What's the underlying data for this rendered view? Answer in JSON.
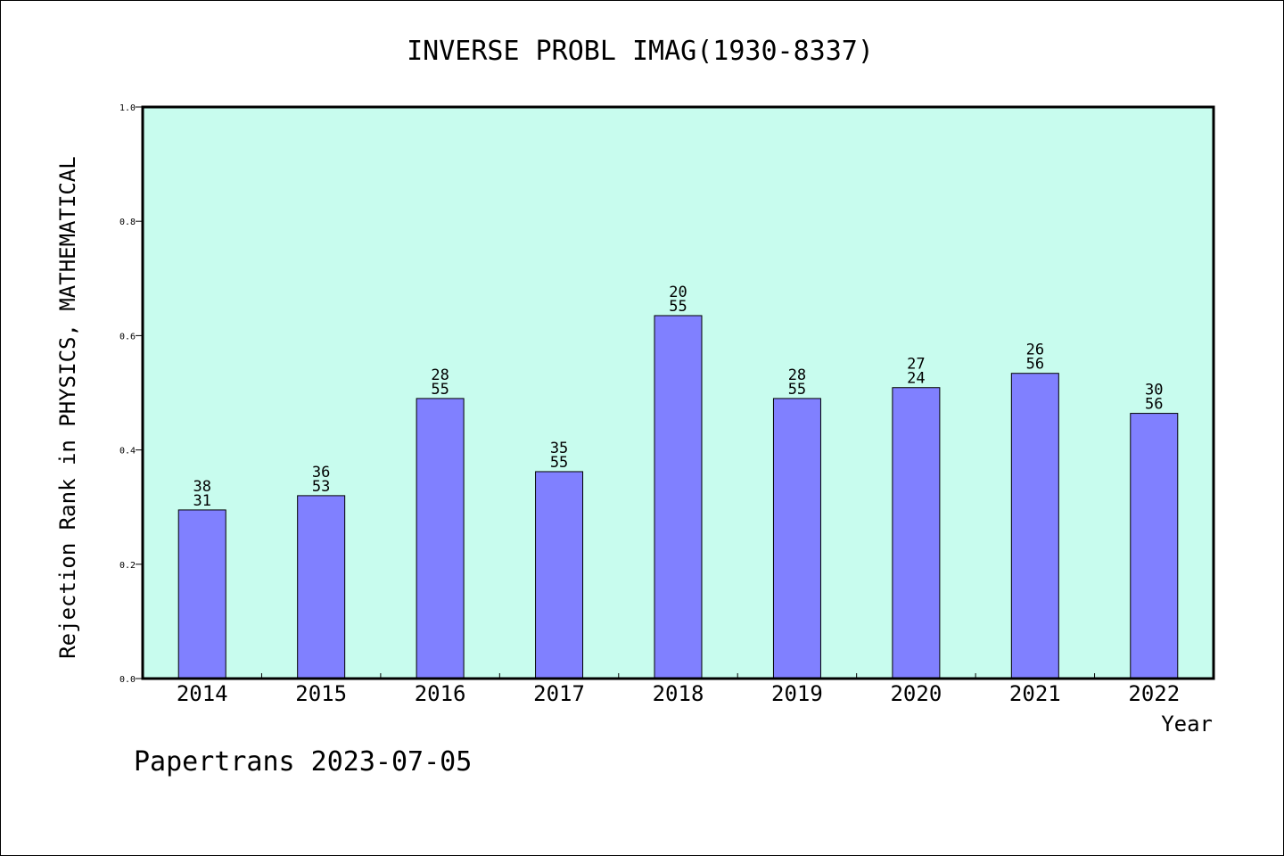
{
  "chart_data": {
    "type": "bar",
    "title": "INVERSE PROBL IMAG(1930-8337)",
    "xlabel": "Year",
    "ylabel": "Rejection Rank in PHYSICS, MATHEMATICAL",
    "categories": [
      "2014",
      "2015",
      "2016",
      "2017",
      "2018",
      "2019",
      "2020",
      "2021",
      "2022"
    ],
    "values": [
      0.295,
      0.32,
      0.49,
      0.362,
      0.635,
      0.49,
      0.509,
      0.534,
      0.464
    ],
    "bar_labels": [
      [
        "38",
        "31"
      ],
      [
        "36",
        "53"
      ],
      [
        "28",
        "55"
      ],
      [
        "35",
        "55"
      ],
      [
        "20",
        "55"
      ],
      [
        "28",
        "55"
      ],
      [
        "27",
        "24"
      ],
      [
        "26",
        "56"
      ],
      [
        "30",
        "56"
      ]
    ],
    "ylim": [
      0,
      1.0
    ],
    "yticks": [
      "0.0",
      "0.2",
      "0.4",
      "0.6",
      "0.8",
      "1.0"
    ],
    "grid": false,
    "colors": {
      "plot_background": "#c8fcee",
      "bar_fill": "#8080ff",
      "bar_stroke": "#000000"
    }
  },
  "footer": "Papertrans 2023-07-05"
}
